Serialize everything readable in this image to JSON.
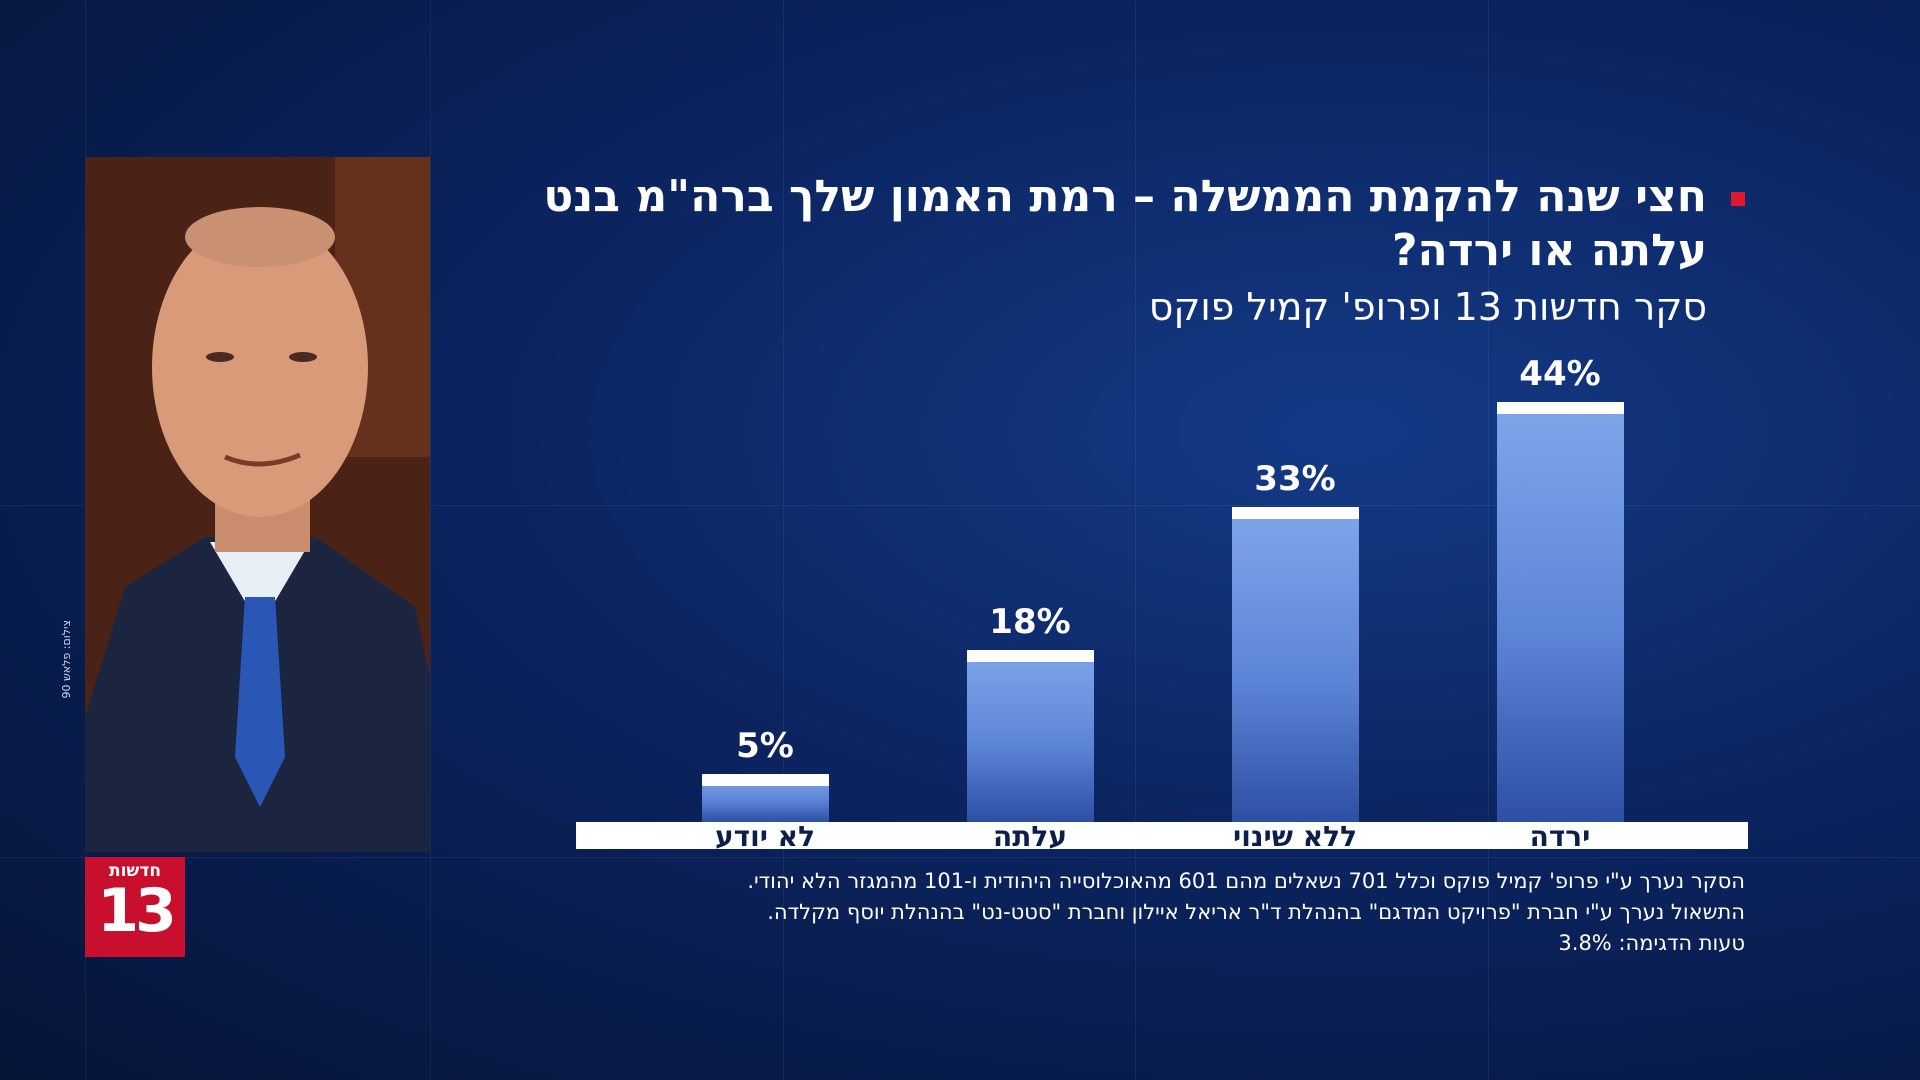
{
  "logo": {
    "word": "חדשות",
    "number": "13"
  },
  "photo_credit": "צילום: פלאש 90",
  "title": "חצי שנה להקמת הממשלה – רמת האמון שלך ברה\"מ בנט עלתה או ירדה?",
  "subtitle": "סקר חדשות 13 ופרופ' קמיל פוקס",
  "colors": {
    "accent_red": "#e0192e",
    "bar": "#6f97e2",
    "background": "#0b2460"
  },
  "chart_data": {
    "type": "bar",
    "title": "חצי שנה להקמת הממשלה – רמת האמון שלך ברה\"מ בנט עלתה או ירדה?",
    "categories": [
      "לא יודע",
      "עלתה",
      "ללא שינוי",
      "ירדה"
    ],
    "values": [
      5,
      18,
      33,
      44
    ],
    "value_labels": [
      "5%",
      "18%",
      "33%",
      "44%"
    ],
    "ylim": [
      0,
      44
    ],
    "grid": false,
    "legend": "none"
  },
  "footnote": {
    "line1": "הסקר נערך ע\"י פרופ' קמיל פוקס וכלל 701 נשאלים מהם 601 מהאוכלוסייה היהודית ו-101 מהמגזר הלא יהודי.",
    "line2": "התשאול נערך ע\"י חברת \"פרויקט המדגם\" בהנהלת ד\"ר אריאל איילון וחברת \"סטט-נט\" בהנהלת יוסף מקלדה.",
    "line3": "טעות הדגימה: 3.8%"
  }
}
